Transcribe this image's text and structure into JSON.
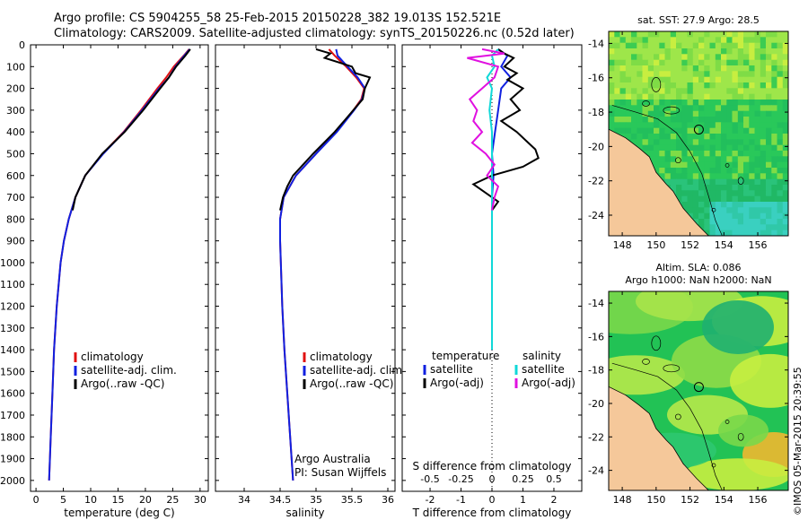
{
  "titles": {
    "line1": "Argo profile: CS 5904255_58 25-Feb-2015 20150228_382 19.013S 152.521E",
    "line2": "Climatology: CARS2009. Satellite-adjusted climatology: synTS_20150226.nc (0.52d later)"
  },
  "credit": "©IMOS 05-Mar-2015 20:39:55",
  "colors": {
    "climatology": "#e01010",
    "satellite": "#1020e0",
    "argo": "#000000",
    "sal_satellite": "#10d8d8",
    "sal_argo": "#e010e0",
    "land": "#f5c89a"
  },
  "depth_axis": {
    "ylim": [
      0,
      2050
    ],
    "ticks": [
      0,
      100,
      200,
      300,
      400,
      500,
      600,
      700,
      800,
      900,
      1000,
      1100,
      1200,
      1300,
      1400,
      1500,
      1600,
      1700,
      1800,
      1900,
      2000
    ]
  },
  "chart_data": [
    {
      "type": "line",
      "panel": "temperature",
      "xlabel": "temperature (deg C)",
      "xlim": [
        -1,
        31.5
      ],
      "xticks": [
        0,
        5,
        10,
        15,
        20,
        25,
        30
      ],
      "legend": [
        "climatology",
        "satellite-adj. clim.",
        "Argo(..raw -QC)"
      ],
      "series": [
        {
          "name": "climatology",
          "key": "climatology",
          "depth": [
            20,
            50,
            100,
            150,
            200,
            300,
            400,
            500,
            600,
            700,
            800,
            900,
            1000,
            1200,
            1400,
            1600,
            1800,
            2000
          ],
          "values": [
            28.0,
            27.0,
            25.2,
            23.8,
            22.2,
            19.2,
            16.0,
            12.2,
            9.0,
            7.2,
            6.0,
            5.1,
            4.5,
            3.8,
            3.3,
            3.0,
            2.7,
            2.4
          ]
        },
        {
          "name": "satellite-adj. clim.",
          "key": "satellite",
          "depth": [
            20,
            50,
            100,
            150,
            200,
            300,
            400,
            500,
            600,
            700,
            800,
            900,
            1000,
            1200,
            1400,
            1600,
            1800,
            2000
          ],
          "values": [
            28.1,
            27.1,
            25.5,
            24.3,
            22.5,
            19.4,
            16.1,
            12.3,
            9.0,
            7.2,
            6.0,
            5.1,
            4.5,
            3.8,
            3.3,
            3.0,
            2.7,
            2.4
          ]
        },
        {
          "name": "Argo(..raw -QC)",
          "key": "argo",
          "depth": [
            20,
            50,
            100,
            150,
            200,
            300,
            400,
            500,
            600,
            700,
            760
          ],
          "values": [
            28.2,
            27.3,
            25.6,
            24.3,
            22.7,
            19.6,
            16.2,
            12.1,
            9.0,
            7.2,
            6.7
          ]
        }
      ]
    },
    {
      "type": "line",
      "panel": "salinity",
      "xlabel": "salinity",
      "xlim": [
        33.6,
        36.1
      ],
      "xticks": [
        34,
        34.5,
        35,
        35.5,
        36
      ],
      "xticklabels": [
        "34",
        "34.5",
        "35",
        "35.5",
        "36"
      ],
      "legend": [
        "climatology",
        "satellite-adj. clim.",
        "Argo(..raw -QC)"
      ],
      "annotation": [
        "Argo Australia",
        "PI: Susan Wijffels"
      ],
      "series": [
        {
          "name": "climatology",
          "key": "climatology",
          "depth": [
            20,
            50,
            100,
            150,
            200,
            250,
            300,
            400,
            500,
            600,
            700,
            800,
            900,
            1000,
            1200,
            1400,
            1600,
            1800,
            2000
          ],
          "values": [
            35.18,
            35.26,
            35.42,
            35.56,
            35.67,
            35.63,
            35.52,
            35.28,
            35.0,
            34.72,
            34.55,
            34.5,
            34.5,
            34.51,
            34.53,
            34.56,
            34.6,
            34.64,
            34.68
          ]
        },
        {
          "name": "satellite-adj. clim.",
          "key": "satellite",
          "depth": [
            20,
            50,
            100,
            150,
            200,
            250,
            300,
            400,
            500,
            600,
            700,
            800,
            900,
            1000,
            1200,
            1400,
            1600,
            1800,
            2000
          ],
          "values": [
            35.28,
            35.3,
            35.44,
            35.58,
            35.68,
            35.64,
            35.53,
            35.29,
            35.0,
            34.72,
            34.55,
            34.5,
            34.5,
            34.51,
            34.53,
            34.56,
            34.6,
            34.64,
            34.68
          ]
        },
        {
          "name": "Argo(..raw -QC)",
          "key": "argo",
          "depth": [
            20,
            40,
            60,
            100,
            130,
            150,
            200,
            250,
            300,
            400,
            500,
            600,
            650,
            700,
            760
          ],
          "values": [
            35.0,
            35.2,
            35.12,
            35.5,
            35.55,
            35.75,
            35.68,
            35.65,
            35.52,
            35.26,
            34.96,
            34.68,
            34.6,
            34.54,
            34.5
          ]
        }
      ]
    },
    {
      "type": "line",
      "panel": "difference",
      "xlabel": "T difference from climatology",
      "xlabel_top": "S difference from climatology",
      "xlim": [
        -2.9,
        2.9
      ],
      "xticks": [
        -2,
        -1,
        0,
        1,
        2
      ],
      "s_ticks": [
        -0.5,
        -0.25,
        0,
        0.25,
        0.5
      ],
      "s_ticklabels": [
        "-0.5",
        "-0.25",
        "0",
        "0.25",
        "0.5"
      ],
      "legend_headers": [
        "temperature",
        "salinity"
      ],
      "legend": [
        "satellite",
        "Argo(-adj)",
        "satellite",
        "Argo(-adj)"
      ],
      "series": [
        {
          "name": "temperature satellite",
          "key": "satellite",
          "depth": [
            20,
            50,
            100,
            150,
            200,
            300,
            400,
            500,
            600,
            700,
            800,
            900,
            1000,
            1200,
            1400
          ],
          "values": [
            0.2,
            0.5,
            0.3,
            0.6,
            0.3,
            0.2,
            0.1,
            0.0,
            0.05,
            0.0,
            0.0,
            0.0,
            0.0,
            0.0,
            0.0
          ]
        },
        {
          "name": "temperature Argo(-adj)",
          "key": "argo",
          "depth": [
            20,
            40,
            60,
            100,
            130,
            160,
            200,
            250,
            300,
            350,
            400,
            440,
            480,
            520,
            560,
            600,
            640,
            680,
            720,
            760
          ],
          "values": [
            0.2,
            0.4,
            0.7,
            0.4,
            0.8,
            0.5,
            1.0,
            0.6,
            0.9,
            0.3,
            0.8,
            1.1,
            1.4,
            1.5,
            1.0,
            0.0,
            -0.6,
            -0.2,
            0.2,
            0.0
          ]
        },
        {
          "name": "salinity satellite",
          "key": "sal_satellite",
          "depth": [
            20,
            50,
            100,
            150,
            200,
            300,
            400,
            500,
            600,
            700,
            800,
            900,
            1000,
            1200,
            1400
          ],
          "values": [
            0.05,
            0.0,
            0.02,
            -0.04,
            0.0,
            -0.02,
            0.0,
            0.0,
            0.0,
            0.0,
            0.0,
            0.0,
            0.0,
            0.0,
            0.0
          ]
        },
        {
          "name": "salinity Argo(-adj)",
          "key": "sal_argo",
          "depth": [
            20,
            40,
            60,
            100,
            150,
            200,
            250,
            300,
            350,
            400,
            450,
            500,
            550,
            600,
            650,
            700,
            760
          ],
          "values": [
            -0.08,
            0.1,
            -0.2,
            0.05,
            0.02,
            -0.08,
            -0.18,
            -0.12,
            -0.15,
            -0.08,
            -0.16,
            -0.05,
            0.02,
            -0.04,
            0.05,
            0.02,
            0.0
          ]
        }
      ]
    },
    {
      "type": "heatmap",
      "panel": "map_sst",
      "title": "sat. SST: 27.9 Argo: 28.5",
      "lon_ticks": [
        148,
        150,
        152,
        154,
        156
      ],
      "lat_ticks": [
        -14,
        -16,
        -18,
        -20,
        -22,
        -24
      ],
      "lon_range": [
        147.2,
        157.8
      ],
      "lat_range": [
        -13.3,
        -25.2
      ],
      "float_lon": 152.521,
      "float_lat": -19.013
    },
    {
      "type": "heatmap",
      "panel": "map_sla",
      "title": "Altim. SLA: 0.086",
      "subtitle": "Argo h1000: NaN h2000: NaN",
      "lon_ticks": [
        148,
        150,
        152,
        154,
        156
      ],
      "lat_ticks": [
        -14,
        -16,
        -18,
        -20,
        -22,
        -24
      ],
      "lon_range": [
        147.2,
        157.8
      ],
      "lat_range": [
        -13.3,
        -25.2
      ],
      "float_lon": 152.521,
      "float_lat": -19.013
    }
  ]
}
